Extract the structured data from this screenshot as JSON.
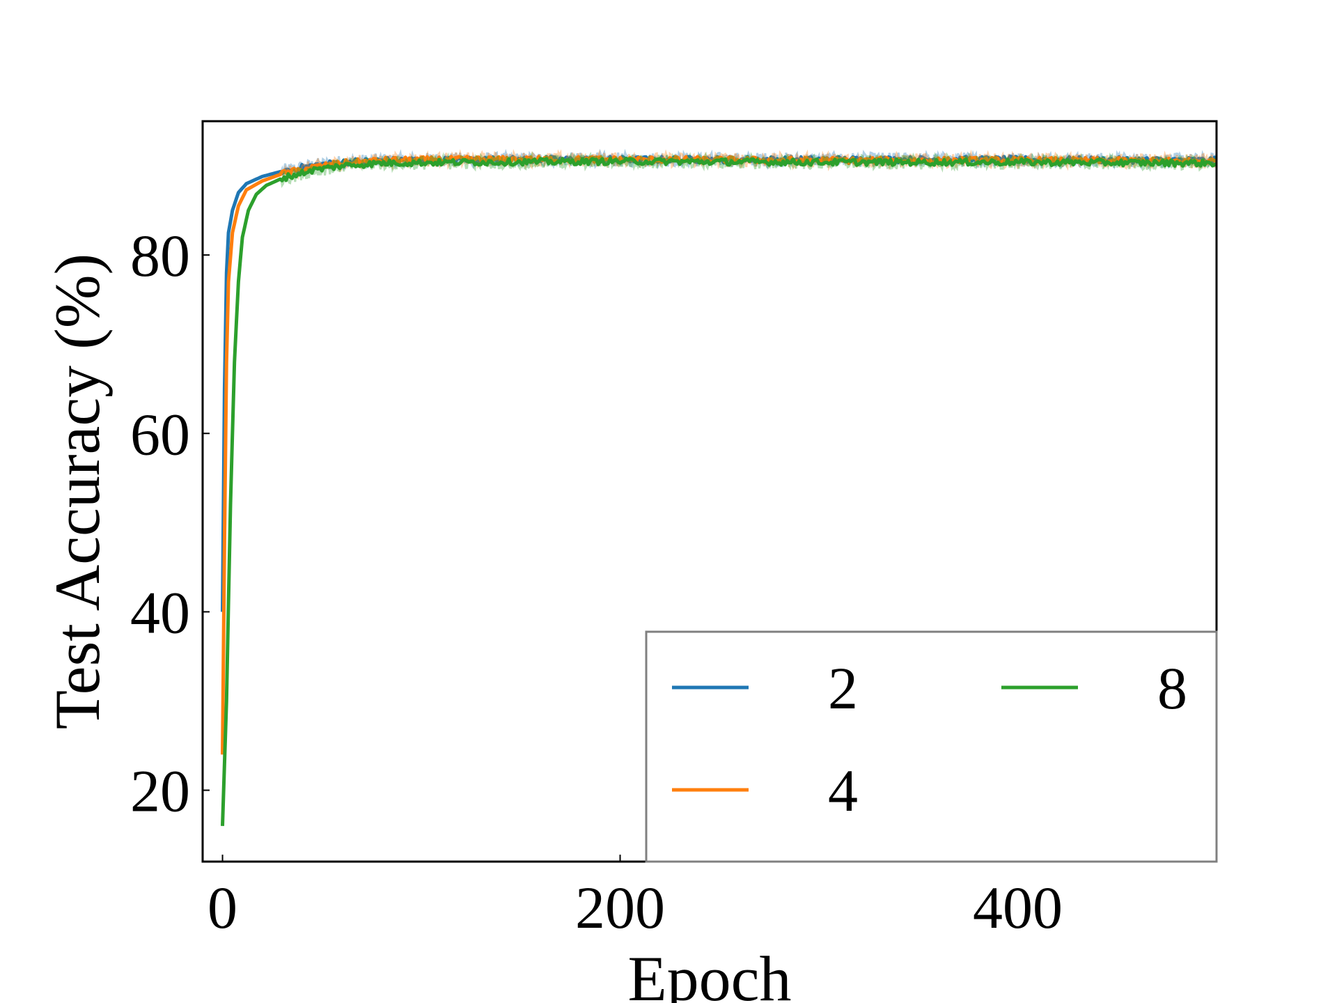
{
  "chart_data": {
    "type": "line",
    "title": "",
    "xlabel": "Epoch",
    "ylabel": "Test Accuracy (%)",
    "xlim": [
      -10,
      500
    ],
    "ylim": [
      12,
      95
    ],
    "xticks": [
      0,
      200,
      400
    ],
    "yticks": [
      20,
      40,
      60,
      80
    ],
    "xtick_labels": [
      "0",
      "200",
      "400"
    ],
    "ytick_labels": [
      "20",
      "40",
      "60",
      "80"
    ],
    "grid": false,
    "legend": {
      "placement": "lower-right",
      "columns": 2
    },
    "series": [
      {
        "name": "2",
        "color": "#1f77b4",
        "points": [
          [
            0,
            40
          ],
          [
            1,
            65
          ],
          [
            2,
            78
          ],
          [
            3,
            82.5
          ],
          [
            5,
            85
          ],
          [
            8,
            87
          ],
          [
            12,
            88
          ],
          [
            20,
            88.8
          ],
          [
            30,
            89.4
          ],
          [
            45,
            90
          ],
          [
            60,
            90.4
          ],
          [
            80,
            90.6
          ],
          [
            120,
            90.7
          ],
          [
            200,
            90.7
          ],
          [
            300,
            90.7
          ],
          [
            400,
            90.7
          ],
          [
            500,
            90.6
          ]
        ]
      },
      {
        "name": "4",
        "color": "#ff7f0e",
        "points": [
          [
            0,
            24
          ],
          [
            1,
            48
          ],
          [
            2,
            68
          ],
          [
            3,
            77
          ],
          [
            5,
            82.5
          ],
          [
            8,
            85.5
          ],
          [
            12,
            87.3
          ],
          [
            20,
            88.3
          ],
          [
            30,
            89.1
          ],
          [
            45,
            89.8
          ],
          [
            60,
            90.3
          ],
          [
            80,
            90.6
          ],
          [
            120,
            90.7
          ],
          [
            200,
            90.7
          ],
          [
            300,
            90.6
          ],
          [
            400,
            90.6
          ],
          [
            500,
            90.5
          ]
        ]
      },
      {
        "name": "8",
        "color": "#2ca02c",
        "points": [
          [
            0,
            16
          ],
          [
            2,
            30
          ],
          [
            4,
            52
          ],
          [
            6,
            68
          ],
          [
            8,
            77
          ],
          [
            10,
            82
          ],
          [
            13,
            85
          ],
          [
            17,
            86.8
          ],
          [
            22,
            87.8
          ],
          [
            30,
            88.6
          ],
          [
            45,
            89.5
          ],
          [
            60,
            90
          ],
          [
            80,
            90.3
          ],
          [
            120,
            90.4
          ],
          [
            200,
            90.5
          ],
          [
            300,
            90.4
          ],
          [
            400,
            90.4
          ],
          [
            500,
            90.3
          ]
        ]
      }
    ]
  }
}
